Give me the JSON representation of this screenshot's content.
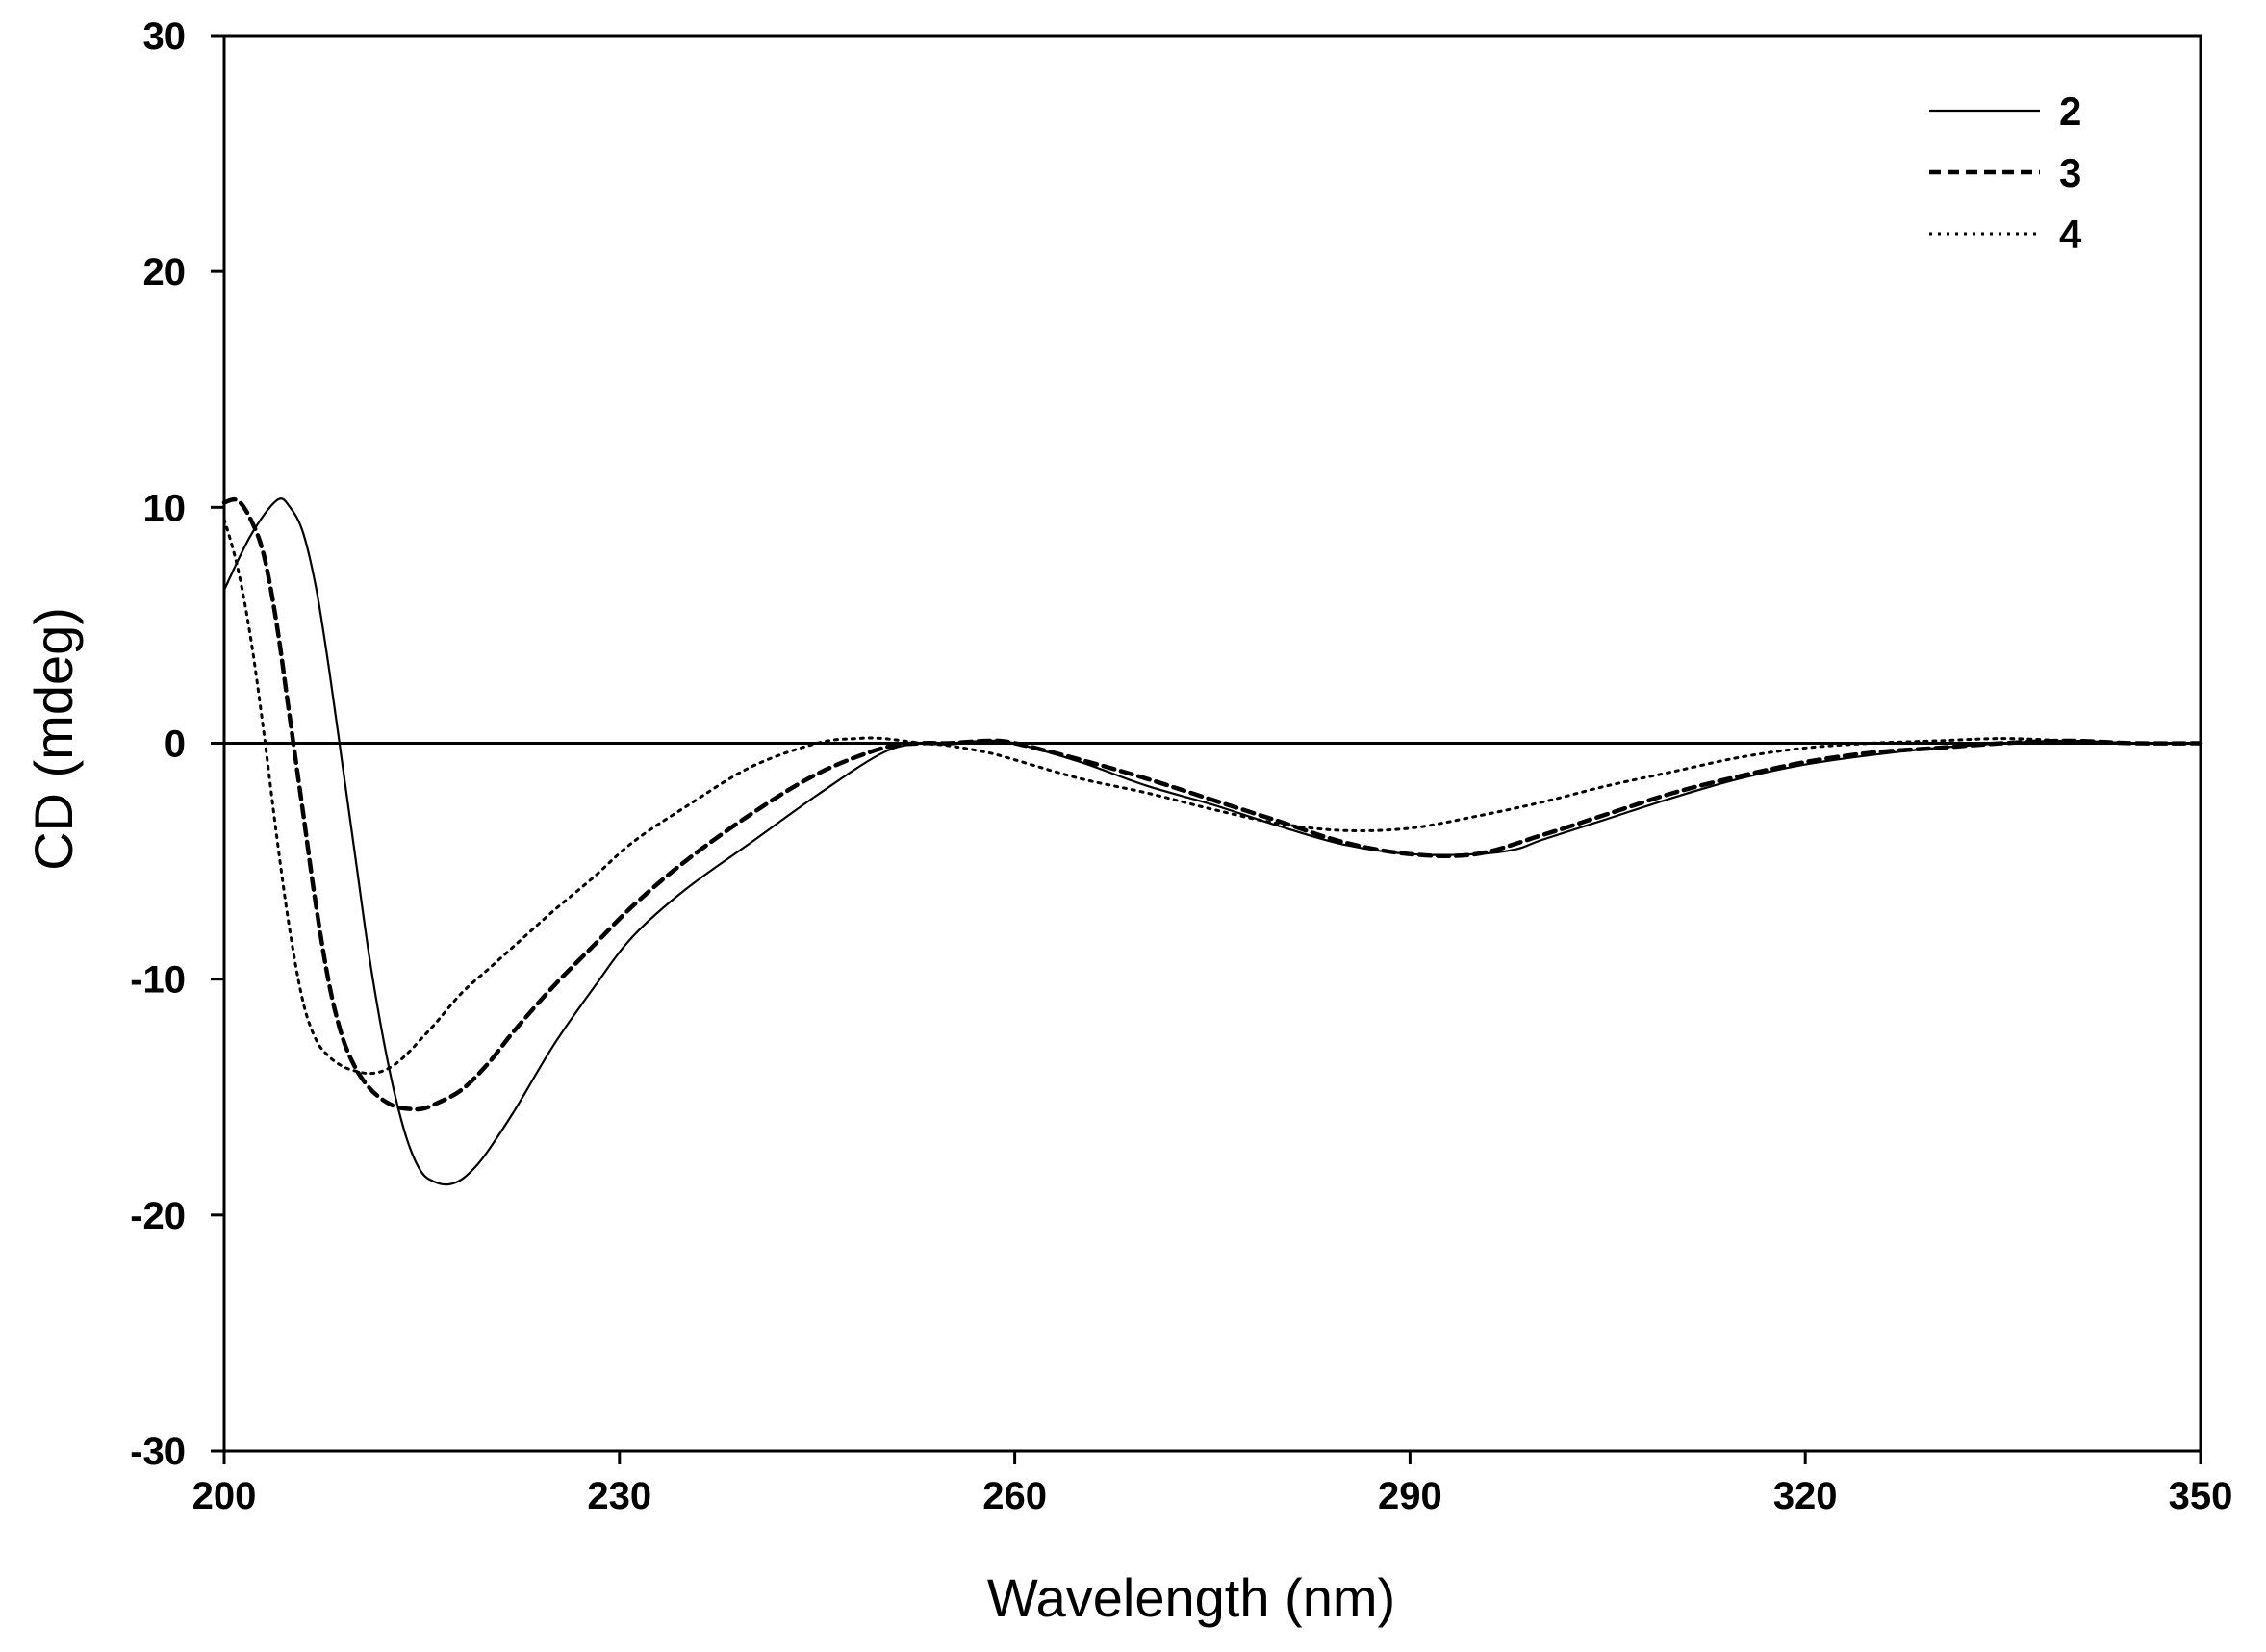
{
  "chart_data": {
    "type": "line",
    "title": "",
    "xlabel": "Wavelength (nm)",
    "ylabel": "CD (mdeg)",
    "xlim": [
      200,
      350
    ],
    "ylim": [
      -30,
      30
    ],
    "x_ticks": [
      200,
      230,
      260,
      290,
      320,
      350
    ],
    "y_ticks": [
      30,
      20,
      10,
      0,
      -10,
      -20,
      -30
    ],
    "x_tick_labels": [
      "200",
      "230",
      "260",
      "290",
      "320",
      "350"
    ],
    "y_tick_labels": [
      "30",
      "20",
      "10",
      "0",
      "-10",
      "-20",
      "-30"
    ],
    "grid": false,
    "zero_line": true,
    "legend_position": "top-right",
    "series": [
      {
        "name": "2",
        "style": "solid",
        "color": "#000000",
        "x": [
          200,
          202,
          204,
          205,
          206,
          207,
          208,
          209,
          210,
          211,
          212,
          213,
          214,
          215,
          216,
          217,
          218,
          219,
          220,
          222,
          225,
          228,
          231,
          235,
          240,
          245,
          250,
          253,
          255,
          258,
          260,
          265,
          270,
          275,
          280,
          285,
          290,
          295,
          298,
          300,
          305,
          310,
          315,
          320,
          325,
          330,
          335,
          340,
          345,
          350
        ],
        "y": [
          6.5,
          8.8,
          10.3,
          10.0,
          8.9,
          6.5,
          3.0,
          -1.0,
          -5.0,
          -9.0,
          -12.3,
          -15.0,
          -17.0,
          -18.2,
          -18.6,
          -18.7,
          -18.5,
          -18.0,
          -17.3,
          -15.6,
          -12.8,
          -10.4,
          -8.2,
          -6.2,
          -4.2,
          -2.2,
          -0.4,
          0.0,
          0.0,
          0.1,
          0.0,
          -0.8,
          -1.8,
          -2.6,
          -3.5,
          -4.3,
          -4.7,
          -4.7,
          -4.5,
          -4.1,
          -3.2,
          -2.3,
          -1.5,
          -0.9,
          -0.5,
          -0.2,
          0.0,
          0.1,
          0.0,
          0.0
        ]
      },
      {
        "name": "3",
        "style": "dashed",
        "color": "#000000",
        "x": [
          200,
          201,
          202,
          203,
          204,
          205,
          206,
          207,
          208,
          209,
          210,
          211,
          212,
          213,
          214,
          215,
          216,
          218,
          220,
          222,
          225,
          228,
          231,
          235,
          240,
          245,
          250,
          253,
          255,
          258,
          260,
          265,
          270,
          275,
          280,
          285,
          290,
          295,
          300,
          305,
          310,
          315,
          320,
          325,
          330,
          335,
          340,
          345,
          350
        ],
        "y": [
          10.2,
          10.3,
          9.5,
          8.0,
          5.0,
          1.0,
          -3.0,
          -7.0,
          -10.3,
          -12.5,
          -13.8,
          -14.6,
          -15.1,
          -15.4,
          -15.5,
          -15.5,
          -15.3,
          -14.7,
          -13.6,
          -12.2,
          -10.3,
          -8.6,
          -6.9,
          -5.0,
          -3.0,
          -1.3,
          -0.2,
          0.0,
          0.0,
          0.1,
          0.0,
          -0.7,
          -1.5,
          -2.4,
          -3.3,
          -4.2,
          -4.7,
          -4.7,
          -3.9,
          -3.0,
          -2.1,
          -1.4,
          -0.8,
          -0.4,
          -0.2,
          0.0,
          0.1,
          0.0,
          0.0
        ]
      },
      {
        "name": "4",
        "style": "dotted",
        "color": "#000000",
        "x": [
          200,
          201,
          202,
          203,
          204,
          205,
          206,
          207,
          208,
          209,
          210,
          211,
          212,
          213,
          214,
          215,
          216,
          218,
          220,
          222,
          225,
          228,
          231,
          235,
          240,
          245,
          248,
          250,
          253,
          255,
          258,
          260,
          265,
          270,
          275,
          280,
          285,
          290,
          295,
          300,
          305,
          310,
          315,
          320,
          325,
          330,
          335,
          340,
          345,
          350
        ],
        "y": [
          9.5,
          7.5,
          4.5,
          0.5,
          -4.0,
          -8.0,
          -11.0,
          -12.6,
          -13.3,
          -13.7,
          -13.9,
          -14.0,
          -13.9,
          -13.6,
          -13.1,
          -12.5,
          -11.9,
          -10.6,
          -9.6,
          -8.6,
          -7.1,
          -5.7,
          -4.2,
          -2.7,
          -1.0,
          0.0,
          0.2,
          0.2,
          0.0,
          -0.1,
          -0.4,
          -0.7,
          -1.5,
          -2.1,
          -2.8,
          -3.4,
          -3.7,
          -3.6,
          -3.1,
          -2.5,
          -1.8,
          -1.2,
          -0.6,
          -0.2,
          0.0,
          0.1,
          0.2,
          0.1,
          0.0,
          0.0
        ]
      }
    ]
  }
}
